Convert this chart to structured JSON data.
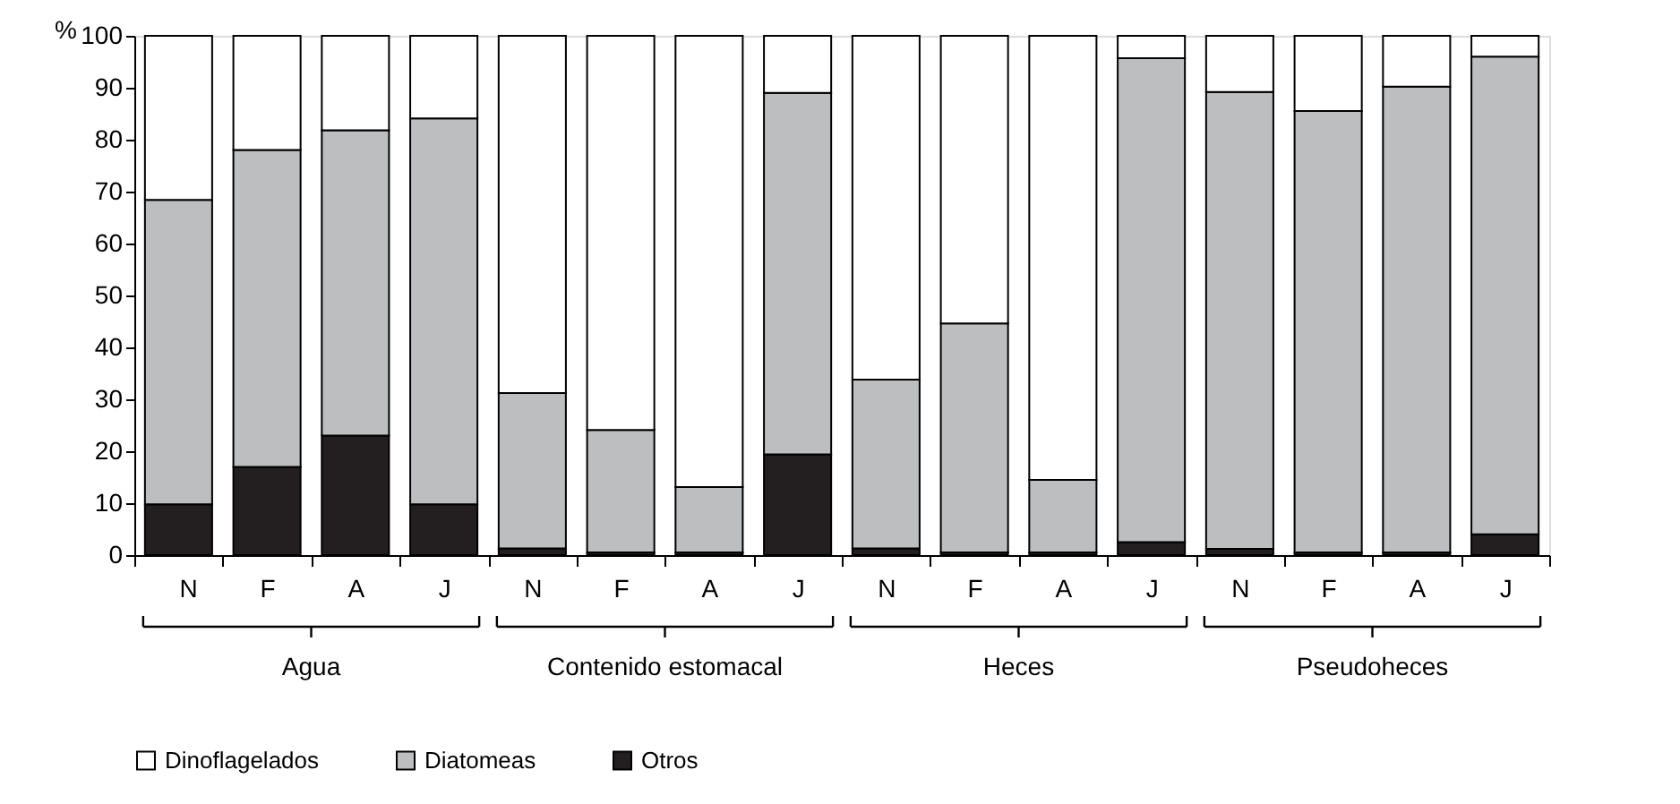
{
  "chart_data": {
    "type": "bar",
    "stacked": true,
    "ylabel": "%",
    "categories": [
      "N",
      "F",
      "A",
      "J",
      "N",
      "F",
      "A",
      "J",
      "N",
      "F",
      "A",
      "J",
      "N",
      "F",
      "A",
      "J"
    ],
    "annotations": [
      "Agua",
      "Contenido estomacal",
      "Heces",
      "Pseudoheces"
    ],
    "series": [
      {
        "name": "Otros",
        "color": "#231f20",
        "values": [
          9.8,
          17,
          23,
          9.8,
          1.3,
          0.5,
          0.5,
          19.4,
          1.3,
          0.5,
          0.5,
          2.5,
          1.2,
          0.5,
          0.5,
          4
        ]
      },
      {
        "name": "Diatomeas",
        "color": "#bcbec0",
        "values": [
          58.6,
          61,
          58.8,
          74.3,
          29.9,
          23.6,
          12.6,
          69.6,
          32.5,
          44.1,
          14,
          93.2,
          88,
          85,
          89.7,
          92
        ]
      },
      {
        "name": "Dinoflagelados",
        "color": "#ffffff",
        "values": [
          31.6,
          22,
          18.2,
          15.9,
          68.8,
          75.9,
          86.9,
          11,
          66.2,
          55.4,
          85.5,
          4.3,
          10.8,
          14.5,
          9.8,
          4
        ]
      }
    ],
    "ylim": [
      0,
      100
    ],
    "yticks": [
      0,
      10,
      20,
      30,
      40,
      50,
      60,
      70,
      80,
      90,
      100
    ],
    "grid": false,
    "legend": "bottom"
  }
}
